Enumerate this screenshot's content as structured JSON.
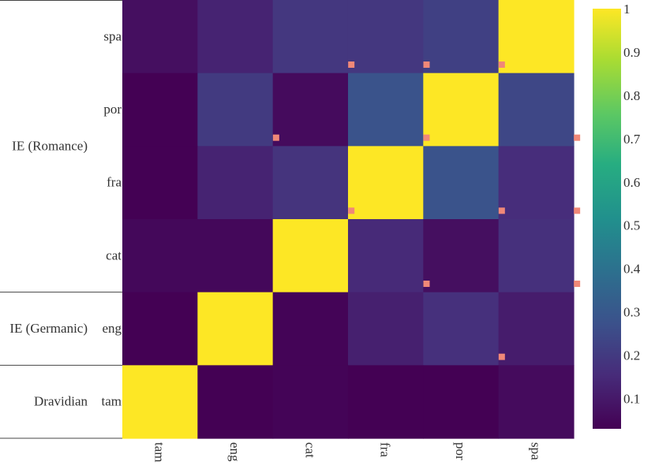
{
  "chart_data": {
    "type": "heatmap",
    "x_labels": [
      "tam",
      "eng",
      "cat",
      "fra",
      "por",
      "spa"
    ],
    "y_labels": [
      "spa",
      "por",
      "fra",
      "cat",
      "eng",
      "tam"
    ],
    "groups": [
      {
        "label": "IE (Romance)",
        "rows": [
          "spa",
          "por",
          "fra",
          "cat"
        ]
      },
      {
        "label": "IE (Germanic)",
        "rows": [
          "eng"
        ]
      },
      {
        "label": "Dravidian",
        "rows": [
          "tam"
        ]
      }
    ],
    "values": [
      [
        0.07,
        0.13,
        0.19,
        0.19,
        0.22,
        1.0
      ],
      [
        0.02,
        0.2,
        0.06,
        0.28,
        1.0,
        0.24
      ],
      [
        0.02,
        0.13,
        0.18,
        1.0,
        0.28,
        0.16
      ],
      [
        0.05,
        0.05,
        1.0,
        0.15,
        0.07,
        0.17
      ],
      [
        0.02,
        1.0,
        0.04,
        0.12,
        0.17,
        0.11
      ],
      [
        1.0,
        0.02,
        0.04,
        0.02,
        0.02,
        0.06
      ]
    ],
    "markers": [
      {
        "row": "spa",
        "col": "cat"
      },
      {
        "row": "spa",
        "col": "fra"
      },
      {
        "row": "spa",
        "col": "por"
      },
      {
        "row": "por",
        "col": "eng"
      },
      {
        "row": "por",
        "col": "fra"
      },
      {
        "row": "por",
        "col": "spa"
      },
      {
        "row": "fra",
        "col": "cat"
      },
      {
        "row": "fra",
        "col": "por"
      },
      {
        "row": "fra",
        "col": "spa"
      },
      {
        "row": "cat",
        "col": "fra"
      },
      {
        "row": "cat",
        "col": "spa"
      },
      {
        "row": "eng",
        "col": "por"
      }
    ],
    "marker_color": "#f08878",
    "colorscale": "viridis",
    "zrange": [
      0.03,
      1
    ],
    "colorbar_ticks": [
      "0.1",
      "0.2",
      "0.3",
      "0.4",
      "0.5",
      "0.6",
      "0.7",
      "0.8",
      "0.9",
      "1"
    ]
  }
}
